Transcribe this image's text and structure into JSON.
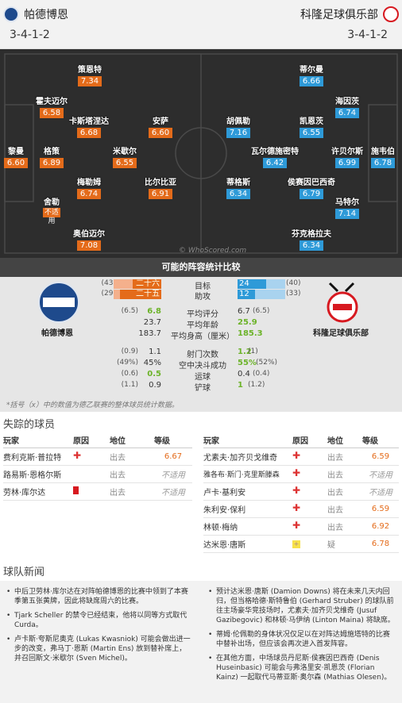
{
  "header": {
    "home_team": "帕德博恩",
    "away_team": "科隆足球俱乐部",
    "home_formation": "3-4-1-2",
    "away_formation": "3-4-1-2"
  },
  "pitch": {
    "watermark": "© WhoScored.com",
    "home_players": [
      {
        "name": "策恩特",
        "rating": "7.34"
      },
      {
        "name": "霍夫迈尔",
        "rating": "6.58"
      },
      {
        "name": "卡斯塔涅达",
        "rating": "6.68"
      },
      {
        "name": "安萨",
        "rating": "6.60"
      },
      {
        "name": "黎曼",
        "rating": "6.60"
      },
      {
        "name": "格策",
        "rating": "6.89"
      },
      {
        "name": "米歇尔",
        "rating": "6.55"
      },
      {
        "name": "梅勒姆",
        "rating": "6.74"
      },
      {
        "name": "比尔比亚",
        "rating": "6.91"
      },
      {
        "name": "舍勒",
        "rating": "不适",
        "note": "用"
      },
      {
        "name": "奥伯迈尔",
        "rating": "7.08"
      }
    ],
    "away_players": [
      {
        "name": "蒂尔曼",
        "rating": "6.66"
      },
      {
        "name": "海因茨",
        "rating": "6.74"
      },
      {
        "name": "胡佩勒",
        "rating": "7.16"
      },
      {
        "name": "凯恩茨",
        "rating": "6.55"
      },
      {
        "name": "瓦尔德施密特",
        "rating": "6.42"
      },
      {
        "name": "许贝尔斯",
        "rating": "6.99"
      },
      {
        "name": "施韦伯",
        "rating": "6.78"
      },
      {
        "name": "蒂格斯",
        "rating": "6.34"
      },
      {
        "name": "侯赛因巴西奇",
        "rating": "6.79"
      },
      {
        "name": "马特尔",
        "rating": "7.14"
      },
      {
        "name": "芬克格拉夫",
        "rating": "6.34"
      }
    ]
  },
  "stats": {
    "title": "可能的阵容统计比较",
    "home_name": "帕德博恩",
    "away_name": "科隆足球俱乐部",
    "home_crest_text": "SC PADERBORN 07",
    "away_crest_text": "1.FC KÖLN",
    "rows": [
      {
        "label": "目标",
        "home": "二十六",
        "home_p": "(43)",
        "away": "24",
        "away_p": "(40)",
        "home_frac": 0.6,
        "away_frac": 0.6
      },
      {
        "label": "助攻",
        "home": "二十五",
        "home_p": "(29)",
        "away": "12",
        "away_p": "(33)",
        "home_frac": 0.86,
        "away_frac": 0.36
      },
      {
        "label": "平均评分",
        "home": "6.8",
        "home_p": "(6.5)",
        "away": "6.7",
        "away_p": "(6.5)"
      },
      {
        "label": "平均年龄",
        "home": "23.7",
        "home_p": "",
        "away": "25.9",
        "away_p": ""
      },
      {
        "label": "平均身高（厘米）",
        "home": "183.7",
        "home_p": "",
        "away": "185.3",
        "away_p": ""
      },
      {
        "label": "射门次数",
        "home": "1.1",
        "home_p": "(0.9)",
        "away": "1.2",
        "away_p": "(1)"
      },
      {
        "label": "空中决斗成功",
        "home": "45%",
        "home_p": "(49%)",
        "away": "55%",
        "away_p": "(52%)"
      },
      {
        "label": "运球",
        "home": "0.5",
        "home_p": "(0.6)",
        "away": "0.4",
        "away_p": "(0.4)"
      },
      {
        "label": "铲球",
        "home": "0.9",
        "home_p": "(1.1)",
        "away": "1",
        "away_p": "(1.2)"
      }
    ],
    "footnote": "*括号（x）中的数值为德乙联赛的整体球员统计数据。"
  },
  "missing": {
    "title": "失踪的球员",
    "headers": {
      "player": "玩家",
      "reason": "原因",
      "status": "地位",
      "rating": "等级"
    },
    "home": [
      {
        "name": "费利克斯·普拉特",
        "reason": "injury",
        "status": "出去",
        "rating": "6.67"
      },
      {
        "name": "路易斯·恩格尔斯",
        "reason": "",
        "status": "出去",
        "rating": "不适用"
      },
      {
        "name": "劳林·库尔达",
        "reason": "red",
        "status": "出去",
        "rating": "不适用"
      }
    ],
    "away": [
      {
        "name": "尤素夫·加齐贝戈维奇",
        "reason": "injury",
        "status": "出去",
        "rating": "6.59"
      },
      {
        "name": "雅各布·斯门·克里斯滕森",
        "reason": "injury",
        "status": "出去",
        "rating": "不适用"
      },
      {
        "name": "卢卡·基利安",
        "reason": "injury",
        "status": "出去",
        "rating": "不适用"
      },
      {
        "name": "朱利安·保利",
        "reason": "injury",
        "status": "出去",
        "rating": "6.59"
      },
      {
        "name": "林顿·梅纳",
        "reason": "injury",
        "status": "出去",
        "rating": "6.92"
      },
      {
        "name": "达米恩·唐斯",
        "reason": "doubt",
        "status": "疑",
        "rating": "6.78"
      }
    ]
  },
  "news": {
    "title": "球队新闻",
    "home": [
      "中后卫劳林·库尔达在对阵帕德博恩的比赛中领到了本赛季第五张黄牌，因此将缺席周六的比赛。",
      "Tjark Scheller 的禁令已经结束，他将以同等方式取代 Curda。",
      "卢卡斯·夸斯尼奥克 (Lukas Kwasniok) 可能会做出进一步的改变，弗马丁·恩斯 (Martin Ens) 放到替补席上，并召回斯文·米歇尔 (Sven Michel)。"
    ],
    "away": [
      "预计达米恩·唐斯 (Damion Downs) 将在未来几天内回归，但当格哈德·斯特鲁伯 (Gerhard Struber) 的球队前往主场豪华竞技场时，尤素夫·加齐贝戈维奇 (Jusuf Gazibegovic) 和林顿·马伊纳 (Linton Maina) 将缺席。",
      "蒂姆·伦佩勒的身体状况仅足以在对阵达姆施塔特的比赛中替补出场，但应该会再次进入首发阵容。",
      "在其他方面，中场球员丹尼斯·侯赛因巴西奇 (Denis Huseinbasic) 可能会与弗洛里安·凯恩茨 (Florian Kainz) 一起取代马蒂亚斯·奥尔森 (Mathias Olesen)。"
    ]
  },
  "colors": {
    "home": "#e46b1a",
    "away": "#2e9ad8",
    "pitch": "#2d2d2d"
  }
}
